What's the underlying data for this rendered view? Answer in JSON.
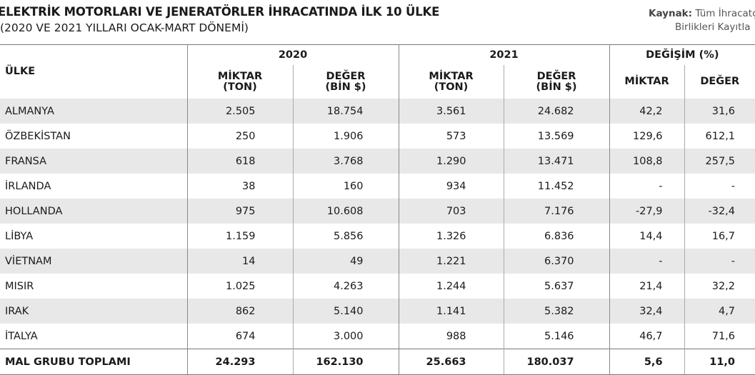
{
  "header": {
    "title": "ELEKTRİK MOTORLARI VE JENERATÖRLER İHRACATINDA İLK 10 ÜLKE",
    "subtitle": "(2020 VE 2021 YILLARI OCAK-MART DÖNEMİ)",
    "source_label": "Kaynak:",
    "source_line1": "Tüm İhracatçı",
    "source_line2": "Birlikleri Kayıtla"
  },
  "table": {
    "country_header": "ÜLKE",
    "groups": [
      "2020",
      "2021",
      "DEĞİŞİM (%)"
    ],
    "subheaders": [
      [
        "MİKTAR",
        "(TON)"
      ],
      [
        "DEĞER",
        "(BİN $)"
      ],
      [
        "MİKTAR",
        "(TON)"
      ],
      [
        "DEĞER",
        "(BİN $)"
      ],
      [
        "MİKTAR"
      ],
      [
        "DEĞER"
      ]
    ],
    "rows": [
      [
        "ALMANYA",
        "2.505",
        "18.754",
        "3.561",
        "24.682",
        "42,2",
        "31,6"
      ],
      [
        "ÖZBEKİSTAN",
        "250",
        "1.906",
        "573",
        "13.569",
        "129,6",
        "612,1"
      ],
      [
        "FRANSA",
        "618",
        "3.768",
        "1.290",
        "13.471",
        "108,8",
        "257,5"
      ],
      [
        "İRLANDA",
        "38",
        "160",
        "934",
        "11.452",
        "-",
        "-"
      ],
      [
        "HOLLANDA",
        "975",
        "10.608",
        "703",
        "7.176",
        "-27,9",
        "-32,4"
      ],
      [
        "LİBYA",
        "1.159",
        "5.856",
        "1.326",
        "6.836",
        "14,4",
        "16,7"
      ],
      [
        "VİETNAM",
        "14",
        "49",
        "1.221",
        "6.370",
        "-",
        "-"
      ],
      [
        "MISIR",
        "1.025",
        "4.263",
        "1.244",
        "5.637",
        "21,4",
        "32,2"
      ],
      [
        "IRAK",
        "862",
        "5.140",
        "1.141",
        "5.382",
        "32,4",
        "4,7"
      ],
      [
        "İTALYA",
        "674",
        "3.000",
        "988",
        "5.146",
        "46,7",
        "71,6"
      ]
    ],
    "total": [
      "MAL GRUBU TOPLAMI",
      "24.293",
      "162.130",
      "25.663",
      "180.037",
      "5,6",
      "11,0"
    ]
  }
}
